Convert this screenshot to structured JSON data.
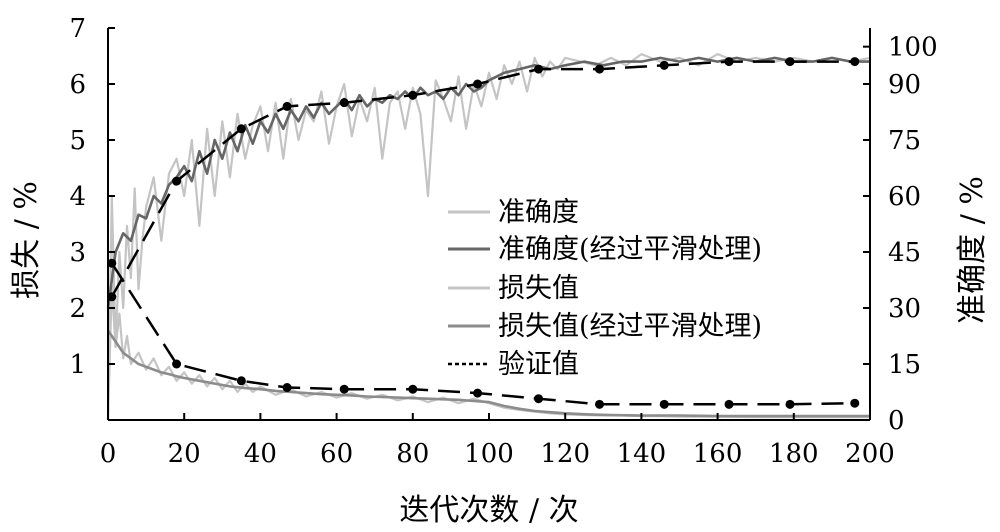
{
  "chart_data": {
    "type": "line",
    "xlabel": "迭代次数 / 次",
    "ylabel_left": "损失 / %",
    "ylabel_right": "准确度 / %",
    "xlim": [
      0,
      200
    ],
    "ylim_left": [
      0,
      7
    ],
    "ylim_right": [
      0,
      105
    ],
    "x_ticks": [
      "0",
      "20",
      "40",
      "60",
      "80",
      "100",
      "120",
      "140",
      "160",
      "180",
      "200"
    ],
    "y_left_ticks": [
      "1",
      "2",
      "3",
      "4",
      "5",
      "6",
      "7"
    ],
    "y_right_ticks": [
      "0",
      "15",
      "30",
      "45",
      "60",
      "75",
      "90",
      "100"
    ],
    "grid": false,
    "legend_position": "center-right",
    "series": [
      {
        "name": "准确度",
        "axis": "right",
        "style": "raw",
        "color": "#c4c4c4",
        "x": [
          0,
          1,
          2,
          3,
          4,
          5,
          6,
          7,
          8,
          9,
          10,
          12,
          14,
          16,
          18,
          20,
          22,
          24,
          26,
          28,
          30,
          32,
          34,
          36,
          38,
          40,
          42,
          44,
          46,
          48,
          50,
          52,
          54,
          56,
          58,
          60,
          62,
          64,
          66,
          68,
          70,
          72,
          74,
          76,
          78,
          80,
          82,
          84,
          86,
          88,
          90,
          92,
          94,
          96,
          98,
          100,
          102,
          104,
          106,
          108,
          110,
          112,
          114,
          116,
          118,
          120,
          124,
          128,
          132,
          136,
          140,
          145,
          150,
          155,
          160,
          165,
          170,
          175,
          180,
          185,
          190,
          195,
          200
        ],
        "y": [
          0,
          60,
          20,
          45,
          30,
          52,
          38,
          62,
          35,
          48,
          57,
          65,
          48,
          66,
          70,
          60,
          75,
          52,
          78,
          60,
          80,
          65,
          82,
          70,
          79,
          84,
          72,
          85,
          70,
          86,
          75,
          83,
          80,
          88,
          74,
          84,
          90,
          76,
          86,
          80,
          89,
          70,
          85,
          88,
          78,
          89,
          82,
          60,
          91,
          86,
          80,
          92,
          78,
          90,
          84,
          93,
          86,
          95,
          90,
          96,
          88,
          97,
          92,
          96,
          94,
          97,
          96,
          95,
          97,
          95,
          98,
          96,
          97,
          95,
          98,
          96,
          97,
          96,
          97,
          96,
          97,
          96,
          97
        ]
      },
      {
        "name": "准确度(经过平滑处理)",
        "axis": "right",
        "style": "smoothed",
        "color": "#666666",
        "x": [
          0,
          2,
          4,
          6,
          8,
          10,
          12,
          14,
          16,
          18,
          20,
          22,
          24,
          26,
          28,
          30,
          32,
          34,
          36,
          38,
          40,
          42,
          44,
          46,
          48,
          50,
          52,
          54,
          56,
          58,
          60,
          62,
          64,
          66,
          68,
          70,
          72,
          74,
          76,
          78,
          80,
          82,
          84,
          86,
          88,
          90,
          92,
          94,
          96,
          98,
          100,
          104,
          108,
          112,
          116,
          120,
          125,
          130,
          135,
          140,
          145,
          150,
          155,
          160,
          165,
          170,
          175,
          180,
          185,
          190,
          195,
          200
        ],
        "y": [
          30,
          45,
          50,
          48,
          55,
          54,
          60,
          58,
          63,
          65,
          68,
          64,
          72,
          66,
          75,
          70,
          77,
          72,
          79,
          74,
          80,
          77,
          82,
          78,
          83,
          80,
          84,
          81,
          85,
          82,
          84,
          86,
          83,
          87,
          84,
          86,
          85,
          87,
          86,
          88,
          86,
          89,
          87,
          88,
          86,
          89,
          87,
          90,
          88,
          89,
          91,
          93,
          94,
          95,
          94,
          95,
          96,
          95,
          96,
          96,
          97,
          96,
          97,
          96,
          97,
          96,
          97,
          96,
          96,
          97,
          96,
          96
        ]
      },
      {
        "name": "损失值",
        "axis": "left",
        "style": "raw",
        "color": "#c4c4c4",
        "x": [
          0,
          1,
          2,
          3,
          4,
          5,
          6,
          8,
          10,
          12,
          14,
          16,
          18,
          20,
          22,
          24,
          26,
          28,
          30,
          32,
          34,
          36,
          38,
          40,
          44,
          48,
          52,
          56,
          60,
          64,
          68,
          72,
          76,
          80,
          84,
          88,
          92,
          96,
          100,
          104,
          108,
          112,
          116,
          120,
          125,
          130,
          135,
          140,
          145,
          150,
          160,
          170,
          180,
          190,
          200
        ],
        "y": [
          0,
          2.4,
          1.3,
          1.9,
          1.1,
          1.5,
          1.0,
          1.2,
          0.9,
          1.1,
          0.8,
          0.95,
          0.7,
          0.85,
          0.65,
          0.8,
          0.6,
          0.75,
          0.55,
          0.7,
          0.5,
          0.65,
          0.5,
          0.6,
          0.45,
          0.55,
          0.42,
          0.5,
          0.4,
          0.48,
          0.38,
          0.45,
          0.35,
          0.42,
          0.32,
          0.4,
          0.3,
          0.38,
          0.3,
          0.22,
          0.18,
          0.15,
          0.12,
          0.1,
          0.09,
          0.08,
          0.08,
          0.07,
          0.07,
          0.06,
          0.06,
          0.05,
          0.05,
          0.05,
          0.05
        ]
      },
      {
        "name": "损失值(经过平滑处理)",
        "axis": "left",
        "style": "smoothed",
        "color": "#8c8c8c",
        "x": [
          0,
          2,
          4,
          6,
          8,
          10,
          12,
          14,
          16,
          18,
          20,
          24,
          28,
          32,
          36,
          40,
          44,
          48,
          52,
          56,
          60,
          64,
          68,
          72,
          76,
          80,
          84,
          88,
          92,
          96,
          100,
          104,
          108,
          112,
          116,
          120,
          126,
          132,
          140,
          150,
          160,
          170,
          180,
          190,
          200
        ],
        "y": [
          1.6,
          1.4,
          1.2,
          1.1,
          1.0,
          0.95,
          0.9,
          0.85,
          0.82,
          0.78,
          0.75,
          0.7,
          0.65,
          0.6,
          0.57,
          0.55,
          0.52,
          0.5,
          0.48,
          0.46,
          0.45,
          0.44,
          0.42,
          0.41,
          0.4,
          0.39,
          0.38,
          0.37,
          0.36,
          0.34,
          0.32,
          0.25,
          0.2,
          0.16,
          0.14,
          0.12,
          0.1,
          0.09,
          0.08,
          0.08,
          0.07,
          0.07,
          0.07,
          0.07,
          0.07
        ]
      },
      {
        "name": "验证值",
        "axis": "right",
        "style": "validation-accuracy",
        "color": "#000000",
        "x": [
          1,
          18,
          35,
          47,
          62,
          80,
          97,
          113,
          129,
          146,
          163,
          179,
          196
        ],
        "y": [
          33,
          64,
          78,
          84,
          85,
          87,
          90,
          94,
          94,
          95,
          96,
          96,
          96
        ]
      },
      {
        "axis": "left",
        "style": "validation-loss",
        "color": "#000000",
        "x": [
          1,
          18,
          35,
          47,
          62,
          80,
          97,
          113,
          129,
          146,
          163,
          179,
          196
        ],
        "y": [
          2.8,
          1.0,
          0.7,
          0.58,
          0.55,
          0.55,
          0.48,
          0.38,
          0.28,
          0.28,
          0.28,
          0.28,
          0.3
        ]
      }
    ]
  }
}
